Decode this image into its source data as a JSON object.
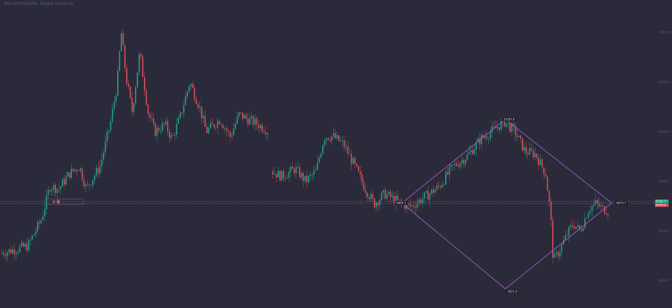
{
  "header": {
    "symbol_title": "Bitcoin/USDollar, Digital Currency"
  },
  "colors": {
    "background": "#2a2a3a",
    "up": "#26a68a",
    "down": "#e0525a",
    "drawing": "#a65fd6",
    "price_line": "#e0525a"
  },
  "chart_data": {
    "type": "candlestick",
    "title": "Bitcoin/USDollar, Digital Currency",
    "y_ticks": [
      4000.0,
      6000.0,
      8000.0,
      10000.0,
      12000.0,
      14000.0
    ],
    "y_tick_labels": [
      "4000.0",
      "6000.0",
      "8000.0",
      "10000.0",
      "12000.0",
      "14000.0"
    ],
    "ylim": [
      2900,
      15300
    ],
    "last_price": {
      "upper": "6747.7",
      "lower": "6747.0"
    },
    "price_path": [
      [
        0,
        5100
      ],
      [
        40,
        5400
      ],
      [
        60,
        6500
      ],
      [
        72,
        7800
      ],
      [
        85,
        7700
      ],
      [
        100,
        8300
      ],
      [
        115,
        8600
      ],
      [
        125,
        7700
      ],
      [
        145,
        8600
      ],
      [
        160,
        10300
      ],
      [
        170,
        11900
      ],
      [
        176,
        14000
      ],
      [
        183,
        12200
      ],
      [
        192,
        10800
      ],
      [
        203,
        13200
      ],
      [
        215,
        10800
      ],
      [
        225,
        10000
      ],
      [
        240,
        10300
      ],
      [
        250,
        9700
      ],
      [
        262,
        10600
      ],
      [
        276,
        12000
      ],
      [
        290,
        11000
      ],
      [
        300,
        10000
      ],
      [
        320,
        10500
      ],
      [
        335,
        9800
      ],
      [
        348,
        10700
      ],
      [
        360,
        10500
      ],
      [
        375,
        10300
      ],
      [
        392,
        10000
      ],
      [
        396,
        8400
      ],
      [
        410,
        8200
      ],
      [
        430,
        8500
      ],
      [
        445,
        8000
      ],
      [
        460,
        8400
      ],
      [
        472,
        9800
      ],
      [
        485,
        9800
      ],
      [
        500,
        9500
      ],
      [
        515,
        8700
      ],
      [
        530,
        7800
      ],
      [
        545,
        7100
      ],
      [
        560,
        7500
      ],
      [
        578,
        7200
      ],
      [
        593,
        7000
      ],
      [
        600,
        7000
      ],
      [
        620,
        7400
      ],
      [
        640,
        7800
      ],
      [
        660,
        8600
      ],
      [
        680,
        9000
      ],
      [
        700,
        9700
      ],
      [
        715,
        10000
      ],
      [
        735,
        10400
      ],
      [
        750,
        10000
      ],
      [
        765,
        9200
      ],
      [
        780,
        9100
      ],
      [
        795,
        8300
      ],
      [
        802,
        6700
      ],
      [
        806,
        4800
      ],
      [
        815,
        5200
      ],
      [
        825,
        5800
      ],
      [
        835,
        6300
      ],
      [
        845,
        6000
      ],
      [
        858,
        6900
      ],
      [
        868,
        7100
      ],
      [
        878,
        6900
      ],
      [
        888,
        6800
      ]
    ],
    "gap": [
      392,
      396
    ],
    "annotations": {
      "top_label": "10587.8",
      "bottom_label": "3821.9",
      "left_label": "6869.5",
      "right_label": "6874.7",
      "left_box_label": "2"
    }
  }
}
